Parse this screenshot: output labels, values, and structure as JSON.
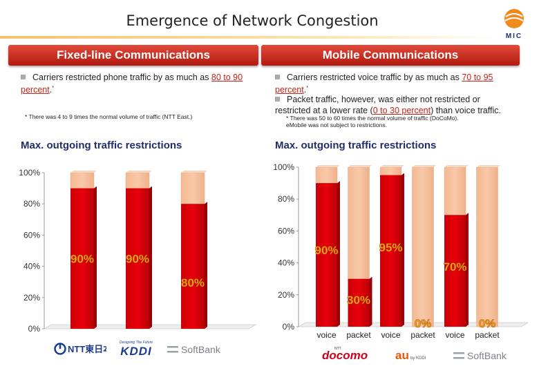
{
  "page_title": "Emergence of Network Congestion",
  "header_left": "Fixed-line Communications",
  "header_right": "Mobile Communications",
  "left_bullet": {
    "text": "Carriers restricted phone traffic by as much as ",
    "highlight": "80 to 90 percent",
    "suffix": "."
  },
  "left_note": "* There was 4 to 9 times the normal volume of traffic (NTT East.)",
  "right_bullets": [
    {
      "text": "Carriers restricted voice traffic by as much as ",
      "highlight": "70 to 95 percent",
      "suffix": "."
    },
    {
      "text": "Packet traffic, however, was either not restricted or restricted at a lower rate (",
      "highlight": "0 to 30 percent",
      "suffix": ") than voice traffic."
    }
  ],
  "right_notes": [
    "* There was 50 to 60 times the normal volume of traffic (DoCoMo).",
    "eMobile was not subject to restrictions."
  ],
  "logos": {
    "mic": "MIC",
    "ntt_east": "NTT東日本",
    "kddi_tagline": "Designing The Future",
    "kddi": "KDDI",
    "softbank": "SoftBank",
    "docomo_ntt": "NTT",
    "docomo": "docomo",
    "au": "au",
    "au_kddi": "by KDDI"
  },
  "colors": {
    "bar_red": "#e8000a",
    "bar_remainder": "#f9c9a8",
    "header_red": "#c3261a",
    "label_orange": "#f5a623",
    "title_navy": "#1f2d6b"
  },
  "chart_data": [
    {
      "type": "bar",
      "stacked": true,
      "title": "Max. outgoing traffic restrictions",
      "ylim": [
        0,
        100
      ],
      "yticks": [
        "0%",
        "20%",
        "40%",
        "60%",
        "80%",
        "100%"
      ],
      "categories": [
        "",
        "",
        ""
      ],
      "values": [
        90,
        90,
        80
      ],
      "data_labels": [
        "90%",
        "90%",
        "80%"
      ],
      "legend": "none",
      "grid": false
    },
    {
      "type": "bar",
      "stacked": true,
      "title": "Max. outgoing traffic restrictions",
      "ylim": [
        0,
        100
      ],
      "yticks": [
        "0%",
        "20%",
        "40%",
        "60%",
        "80%",
        "100%"
      ],
      "categories": [
        "voice",
        "packet",
        "voice",
        "packet",
        "voice",
        "packet"
      ],
      "values": [
        90,
        30,
        95,
        0,
        70,
        0
      ],
      "data_labels": [
        "90%",
        "30%",
        "95%",
        "0%",
        "70%",
        "0%"
      ],
      "legend": "none",
      "grid": false
    }
  ]
}
